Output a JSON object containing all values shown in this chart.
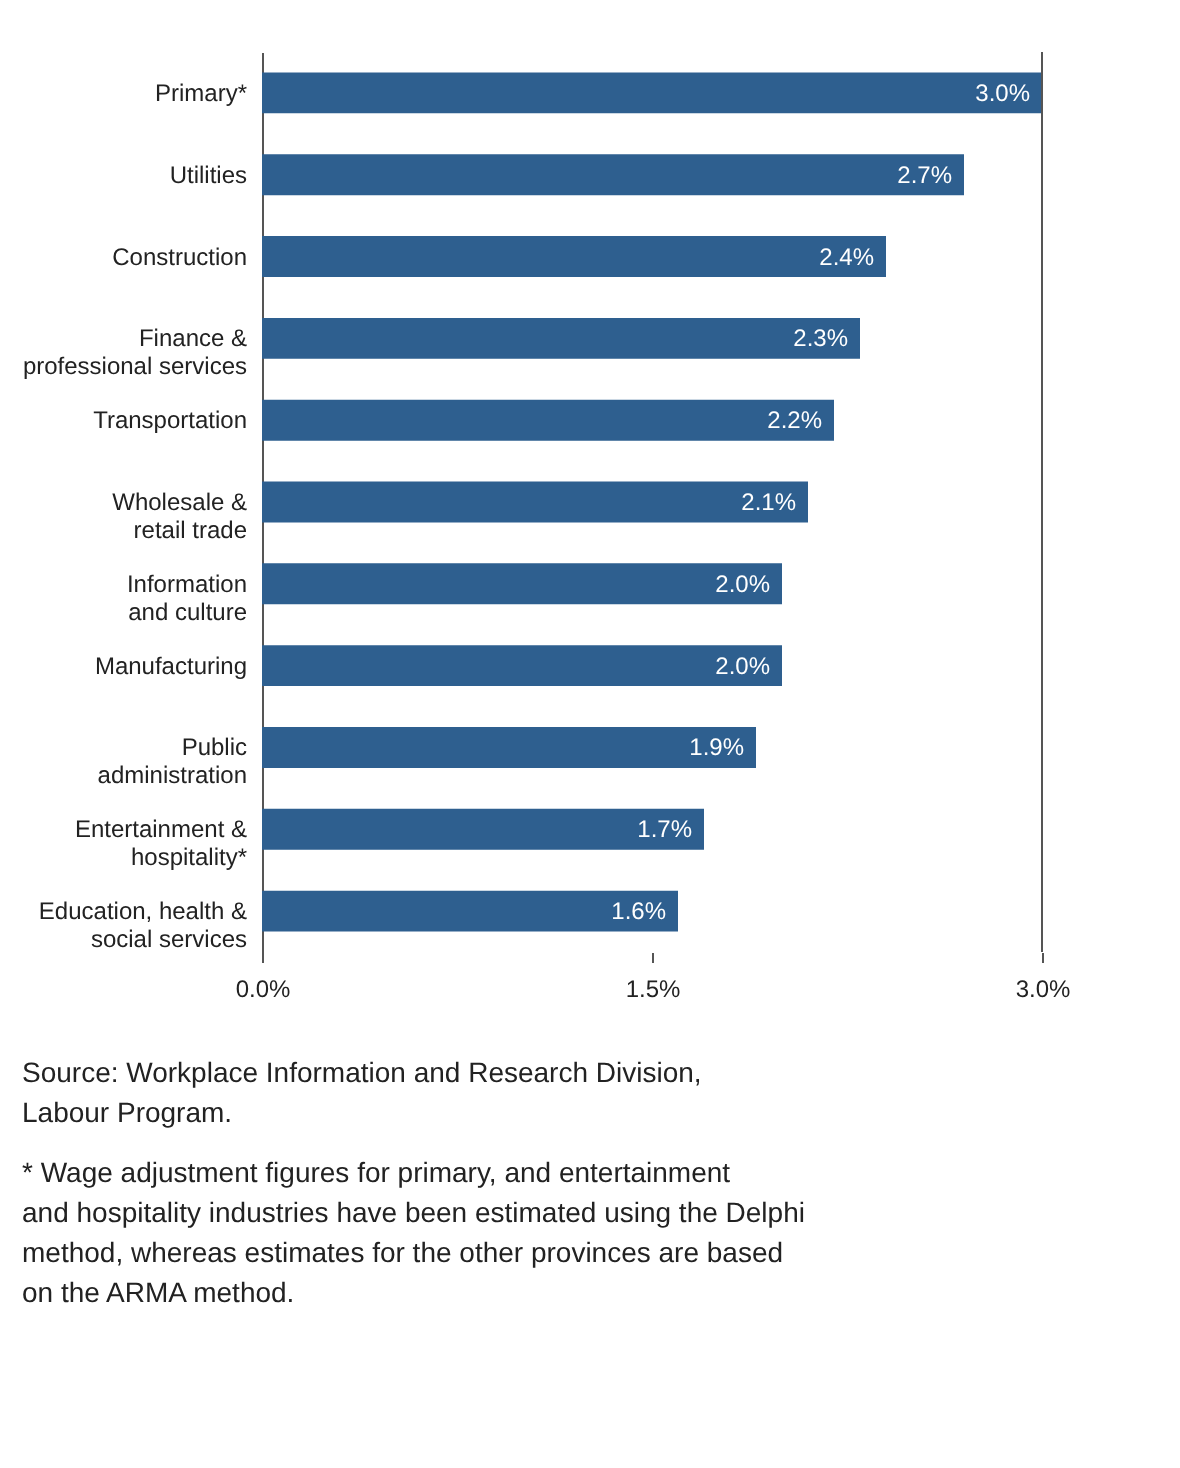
{
  "chart_data": {
    "type": "bar",
    "orientation": "horizontal",
    "categories": [
      "Primary*",
      "Utilities",
      "Construction",
      "Finance &\nprofessional services",
      "Transportation",
      "Wholesale &\nretail trade",
      "Information\nand culture",
      "Manufacturing",
      "Public\nadministration",
      "Entertainment &\nhospitality*",
      "Education, health &\nsocial services"
    ],
    "values": [
      3.0,
      2.7,
      2.4,
      2.3,
      2.2,
      2.1,
      2.0,
      2.0,
      1.9,
      1.7,
      1.6
    ],
    "color": "#2e5f8f",
    "value_labels": [
      "3.0%",
      "2.7%",
      "2.4%",
      "2.3%",
      "2.2%",
      "2.1%",
      "2.0%",
      "2.0%",
      "1.9%",
      "1.7%",
      "1.6%"
    ],
    "xlim": [
      0,
      3.0
    ],
    "xticks": [
      {
        "value": 0,
        "label": "0.0%"
      },
      {
        "value": 1.5,
        "label": "1.5%"
      },
      {
        "value": 3.0,
        "label": "3.0%"
      }
    ],
    "grid": false,
    "annotations": [
      "Source: Workplace Information and Research Division,\nLabour Program.",
      "* Wage adjustment figures for primary, and entertainment\n   and hospitality industries have been estimated using the Delphi\n   method, whereas estimates for the other provinces are based\n   on the ARMA method."
    ]
  }
}
